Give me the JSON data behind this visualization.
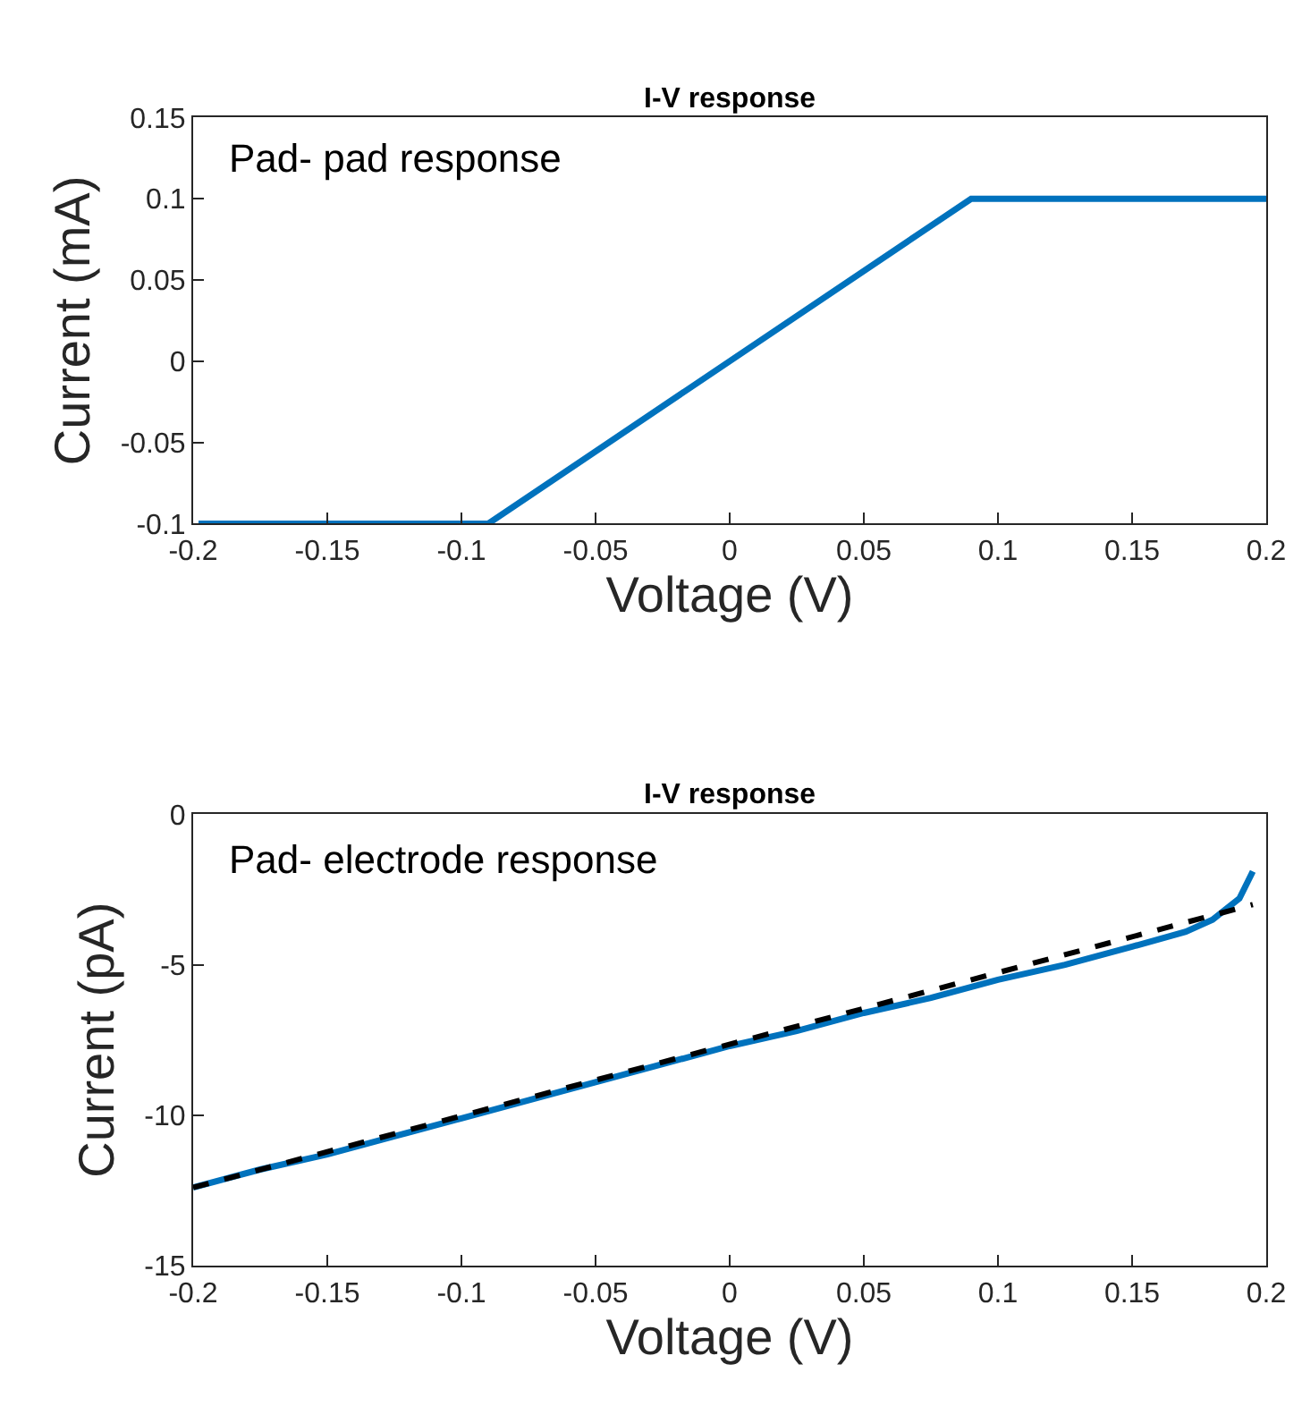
{
  "chart_data": [
    {
      "type": "line",
      "title": "I-V response",
      "xlabel": "Voltage (V)",
      "ylabel": "Current (mA)",
      "annotations": [
        "Pad- pad response"
      ],
      "xlim": [
        -0.2,
        0.2
      ],
      "xticks": [
        -0.2,
        -0.15,
        -0.1,
        -0.05,
        0,
        0.05,
        0.1,
        0.15,
        0.2
      ],
      "ylim": [
        -0.1,
        0.15
      ],
      "yticks": [
        -0.1,
        -0.05,
        0,
        0.05,
        0.1,
        0.15
      ],
      "series": [
        {
          "color": "#0072bd",
          "line_style": "solid",
          "x": [
            -0.198,
            -0.09,
            0.09,
            0.2
          ],
          "values": [
            -0.1,
            -0.1,
            0.1,
            0.1
          ]
        }
      ]
    },
    {
      "type": "line",
      "title": "I-V response",
      "xlabel": "Voltage (V)",
      "ylabel": "Current (pA)",
      "annotations": [
        "Pad- electrode response"
      ],
      "xlim": [
        -0.2,
        0.2
      ],
      "xticks": [
        -0.2,
        -0.15,
        -0.1,
        -0.05,
        0,
        0.05,
        0.1,
        0.15,
        0.2
      ],
      "ylim": [
        -15,
        0
      ],
      "yticks": [
        -15,
        -10,
        -5,
        0
      ],
      "series": [
        {
          "color": "#0072bd",
          "line_style": "solid",
          "x": [
            -0.2,
            -0.175,
            -0.15,
            -0.125,
            -0.1,
            -0.075,
            -0.05,
            -0.025,
            0,
            0.025,
            0.05,
            0.075,
            0.1,
            0.125,
            0.15,
            0.17,
            0.18,
            0.19,
            0.195
          ],
          "values": [
            -12.4,
            -11.8,
            -11.3,
            -10.7,
            -10.1,
            -9.5,
            -8.9,
            -8.3,
            -7.7,
            -7.2,
            -6.6,
            -6.1,
            -5.5,
            -5.0,
            -4.4,
            -3.9,
            -3.5,
            -2.8,
            -1.9
          ]
        },
        {
          "color": "#000000",
          "line_style": "dashed",
          "x": [
            -0.2,
            0.195
          ],
          "values": [
            -12.4,
            -3.0
          ]
        }
      ]
    }
  ]
}
